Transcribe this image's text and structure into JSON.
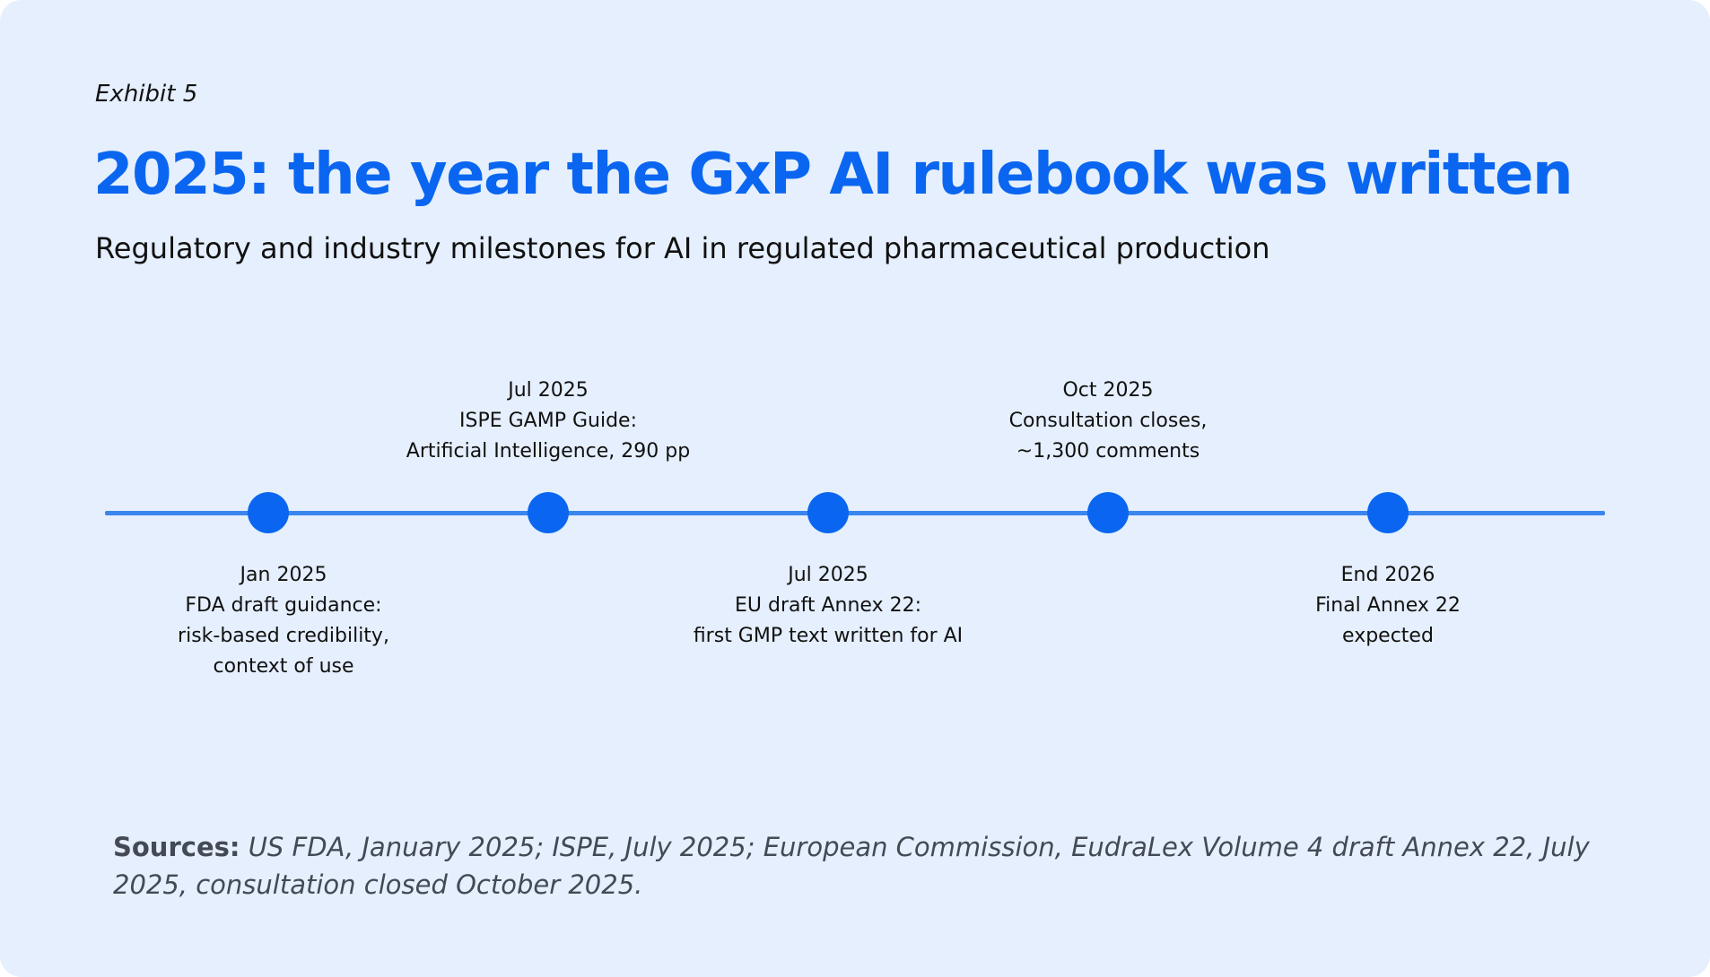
{
  "exhibit_label": "Exhibit 5",
  "title": "2025: the year the GxP AI rulebook was written",
  "subtitle": "Regulatory and industry milestones for AI in regulated pharmaceutical production",
  "milestones": [
    {
      "date": "Jan 2025",
      "lines": [
        "FDA draft guidance:",
        "risk-based credibility,",
        "context of use"
      ],
      "position": "below"
    },
    {
      "date": "Jul 2025",
      "lines": [
        "ISPE GAMP Guide:",
        "Artificial Intelligence, 290 pp"
      ],
      "position": "above"
    },
    {
      "date": "Jul 2025",
      "lines": [
        "EU draft Annex 22:",
        "first GMP text written for AI"
      ],
      "position": "below"
    },
    {
      "date": "Oct 2025",
      "lines": [
        "Consultation closes,",
        "~1,300 comments"
      ],
      "position": "above"
    },
    {
      "date": "End 2026",
      "lines": [
        "Final Annex 22",
        "expected"
      ],
      "position": "below"
    }
  ],
  "sources": {
    "label": "Sources:",
    "text": " US FDA, January 2025; ISPE, July 2025; European Commission, EudraLex Volume 4 draft Annex 22, July 2025, consultation closed October 2025."
  },
  "colors": {
    "accent": "#0a66f0",
    "line": "#3a86ee",
    "background": "#e5effd"
  }
}
